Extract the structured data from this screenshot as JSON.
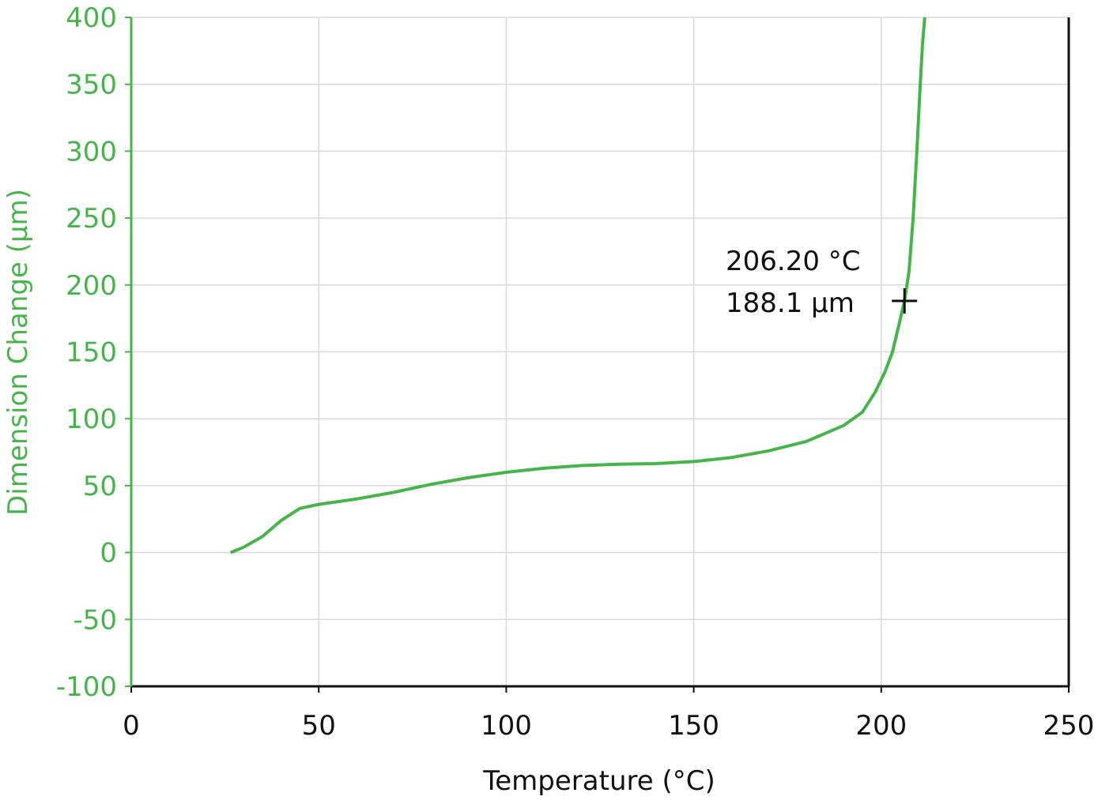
{
  "chart_data": {
    "type": "line",
    "xlabel": "Temperature (°C)",
    "ylabel": "Dimension Change (µm)",
    "series": [
      {
        "name": "Dimension Change",
        "color": "#45b549",
        "x": [
          26.5,
          30,
          35,
          40,
          45,
          50,
          60,
          70,
          80,
          90,
          100,
          110,
          120,
          130,
          140,
          150,
          160,
          170,
          180,
          190,
          195,
          198.4,
          201,
          203,
          204.7,
          206.2,
          207.4,
          208.5,
          209.5,
          210.4,
          211,
          211.6
        ],
        "values": [
          0,
          4,
          12,
          24,
          33,
          36,
          40,
          45,
          51,
          56,
          60,
          63,
          65,
          66,
          66.5,
          68,
          71,
          76,
          83,
          95,
          105,
          120,
          135,
          150,
          170,
          188.1,
          210,
          250,
          300,
          350,
          380,
          400
        ]
      }
    ],
    "annotations": [
      {
        "label": [
          "206.20 °C",
          "188.1 µm"
        ],
        "x": 206.2,
        "y": 188.1
      }
    ],
    "xlim": [
      0,
      250
    ],
    "xticks": [
      0,
      50,
      100,
      150,
      200,
      250
    ],
    "ylim": [
      -100,
      400
    ],
    "yticks": [
      -100,
      -50,
      0,
      50,
      100,
      150,
      200,
      250,
      300,
      350,
      400
    ],
    "grid": true
  }
}
